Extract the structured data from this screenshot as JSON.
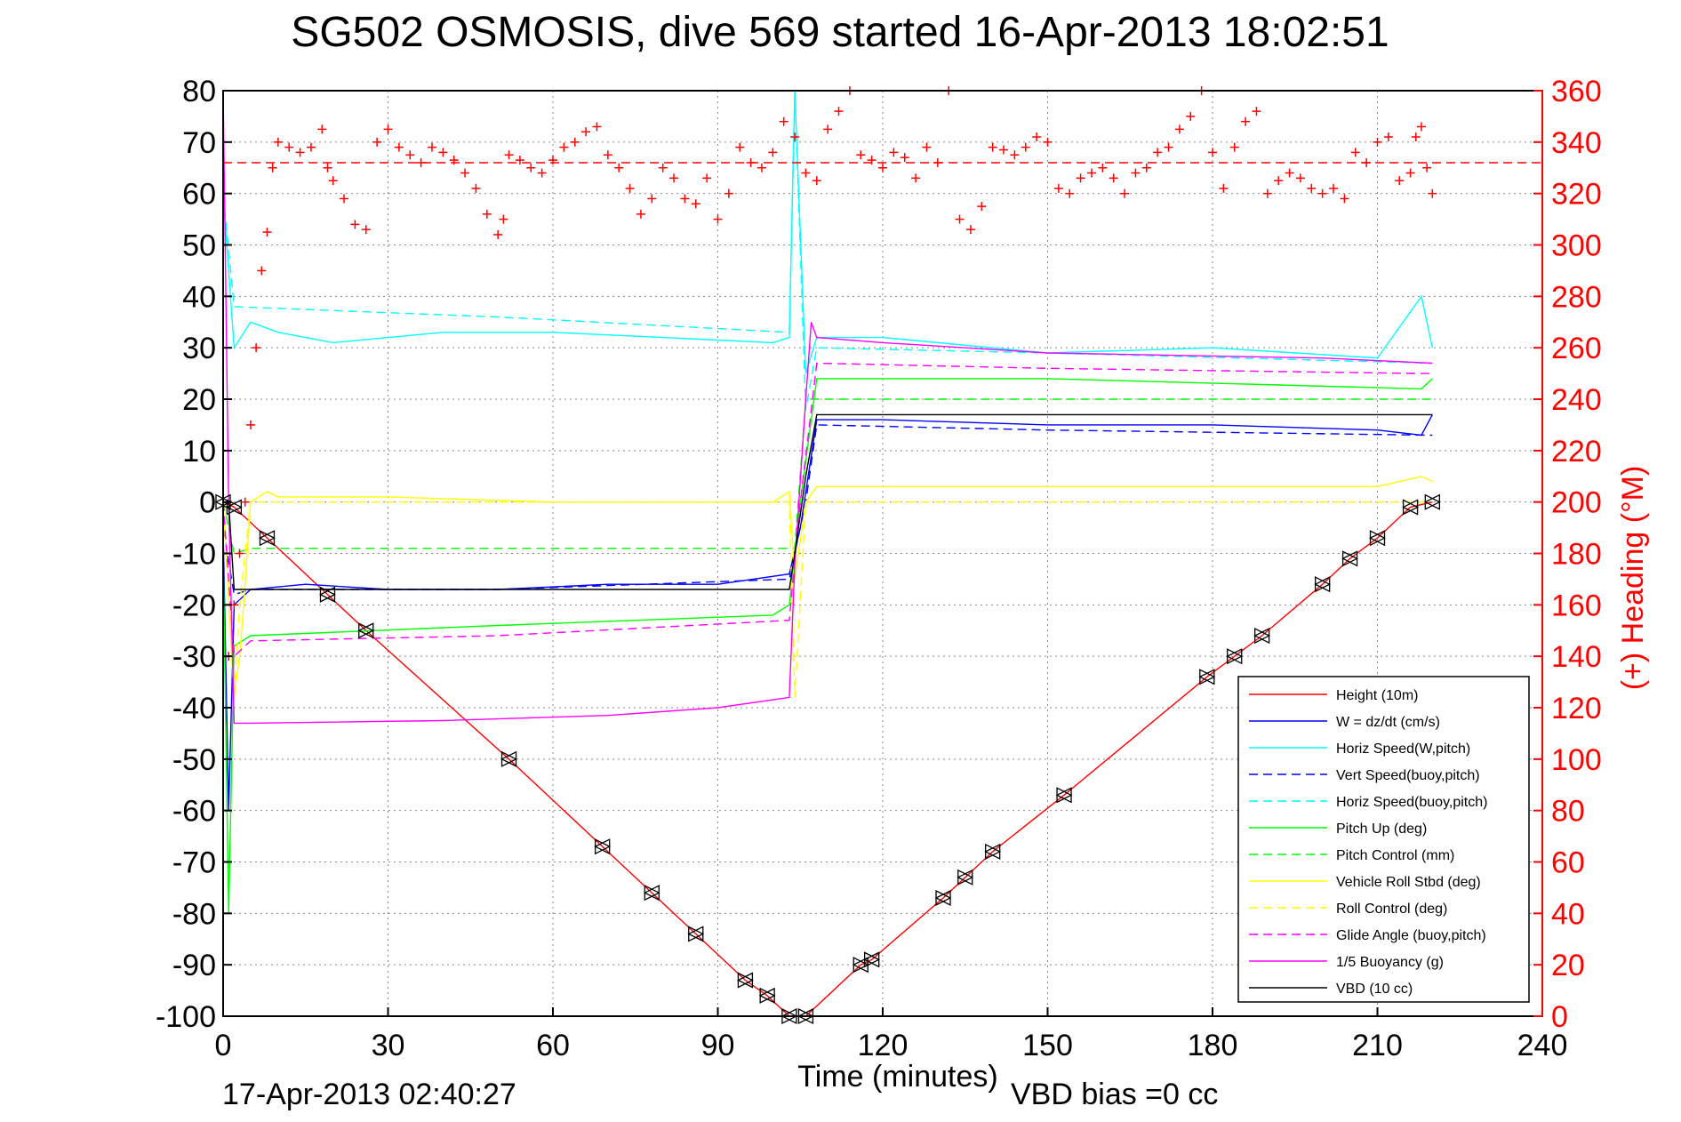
{
  "chart_data": {
    "type": "line",
    "title": "SG502 OSMOSIS, dive 569 started 16-Apr-2013 18:02:51",
    "xlabel": "Time (minutes)",
    "ylabel_right": "(+) Heading (°M)",
    "footer_left": "17-Apr-2013 02:40:27",
    "footer_right": "VBD bias =0 cc",
    "xlim": [
      0,
      240
    ],
    "ylim_left": [
      -100,
      80
    ],
    "ylim_right": [
      0,
      360
    ],
    "x_ticks": [
      "0",
      "30",
      "60",
      "90",
      "120",
      "150",
      "180",
      "210",
      "240"
    ],
    "y_ticks_left": [
      "-100",
      "-90",
      "-80",
      "-70",
      "-60",
      "-50",
      "-40",
      "-30",
      "-20",
      "-10",
      "0",
      "10",
      "20",
      "30",
      "40",
      "50",
      "60",
      "70",
      "80"
    ],
    "y_ticks_right": [
      "0",
      "20",
      "40",
      "60",
      "80",
      "100",
      "120",
      "140",
      "160",
      "180",
      "200",
      "220",
      "240",
      "260",
      "280",
      "300",
      "320",
      "340",
      "360"
    ],
    "grid": true,
    "legend_position": "bottom-right",
    "colors": {
      "red": "#ff0000",
      "blue": "#0000ff",
      "cyan": "#00ffff",
      "green": "#00ff00",
      "yellow": "#ffff00",
      "magenta": "#ff00ff",
      "black": "#000000"
    },
    "series": [
      {
        "name": "Height (10m)",
        "color": "#ff0000",
        "dash": false,
        "axis": "left",
        "x": [
          0,
          2,
          8,
          19,
          26,
          52,
          69,
          78,
          86,
          95,
          99,
          103,
          106,
          116,
          118,
          131,
          135,
          140,
          153,
          179,
          184,
          189,
          200,
          205,
          210,
          216,
          220
        ],
        "y": [
          0,
          -1,
          -7,
          -18,
          -25,
          -50,
          -67,
          -76,
          -84,
          -93,
          -96,
          -100,
          -100,
          -90,
          -89,
          -77,
          -73,
          -68,
          -57,
          -34,
          -30,
          -26,
          -16,
          -11,
          -7,
          -1,
          0
        ]
      },
      {
        "name": "W = dz/dt (cm/s)",
        "color": "#0000ff",
        "dash": false,
        "axis": "left",
        "x": [
          0,
          1,
          2,
          5,
          15,
          30,
          50,
          70,
          90,
          103,
          105,
          108,
          120,
          150,
          180,
          210,
          218,
          220
        ],
        "y": [
          -5,
          -60,
          -20,
          -17,
          -16,
          -17,
          -17,
          -16,
          -16,
          -14,
          -5,
          16,
          16,
          15,
          15,
          14,
          13,
          17
        ]
      },
      {
        "name": "Horiz Speed(W,pitch)",
        "color": "#00ffff",
        "dash": false,
        "axis": "left",
        "x": [
          0,
          2,
          5,
          10,
          20,
          40,
          60,
          80,
          100,
          103,
          104,
          106,
          108,
          120,
          150,
          180,
          210,
          218,
          220
        ],
        "y": [
          60,
          30,
          35,
          33,
          31,
          33,
          33,
          32,
          31,
          32,
          80,
          25,
          32,
          32,
          29,
          30,
          28,
          40,
          30
        ]
      },
      {
        "name": "Vert Speed(buoy,pitch)",
        "color": "#0000ff",
        "dash": true,
        "axis": "left",
        "x": [
          0,
          2,
          5,
          50,
          103,
          106,
          108,
          150,
          220
        ],
        "y": [
          -5,
          -18,
          -17,
          -17,
          -15,
          0,
          15,
          14,
          13
        ]
      },
      {
        "name": "Horiz Speed(buoy,pitch)",
        "color": "#00ffff",
        "dash": true,
        "axis": "left",
        "x": [
          0,
          2,
          50,
          103,
          104,
          106,
          108,
          150,
          220
        ],
        "y": [
          60,
          38,
          36,
          33,
          80,
          18,
          30,
          29,
          27
        ]
      },
      {
        "name": "Pitch Up (deg)",
        "color": "#00ff00",
        "dash": false,
        "axis": "left",
        "x": [
          0,
          1,
          2,
          5,
          50,
          100,
          103,
          105,
          108,
          150,
          218,
          220
        ],
        "y": [
          -10,
          -80,
          -28,
          -26,
          -24,
          -22,
          -20,
          0,
          24,
          24,
          22,
          24
        ]
      },
      {
        "name": "Pitch Control (mm)",
        "color": "#00ff00",
        "dash": true,
        "axis": "left",
        "x": [
          0,
          1,
          2,
          5,
          50,
          103,
          104,
          106,
          108,
          150,
          220
        ],
        "y": [
          0,
          -5,
          -10,
          -9,
          -9,
          -9,
          -9,
          20,
          20,
          20,
          20
        ]
      },
      {
        "name": "Vehicle Roll Stbd (deg)",
        "color": "#ffff00",
        "dash": false,
        "axis": "left",
        "x": [
          0,
          2,
          3,
          4,
          5,
          8,
          10,
          30,
          60,
          90,
          100,
          103,
          104,
          106,
          108,
          150,
          210,
          218,
          220
        ],
        "y": [
          0,
          -38,
          -30,
          -16,
          0,
          2,
          1,
          1,
          0,
          0,
          0,
          2,
          -15,
          0,
          3,
          3,
          3,
          5,
          4
        ]
      },
      {
        "name": "Roll Control (deg)",
        "color": "#ffff00",
        "dash": true,
        "axis": "left",
        "x": [
          0,
          2,
          3,
          5,
          10,
          30,
          60,
          90,
          103,
          104,
          106,
          108,
          150,
          220
        ],
        "y": [
          0,
          -38,
          -20,
          0,
          0,
          0,
          0,
          0,
          0,
          -38,
          0,
          0,
          0,
          0
        ]
      },
      {
        "name": "Glide Angle (buoy,pitch)",
        "color": "#ff00ff",
        "dash": true,
        "axis": "left",
        "x": [
          0,
          2,
          5,
          50,
          103,
          105,
          108,
          150,
          218,
          220
        ],
        "y": [
          0,
          -30,
          -27,
          -26,
          -23,
          0,
          27,
          26,
          25,
          25
        ]
      },
      {
        "name": "1/5 Buoyancy (g)",
        "color": "#ff00ff",
        "dash": false,
        "axis": "left",
        "x": [
          0,
          1,
          2,
          5,
          40,
          70,
          90,
          103,
          104,
          106,
          107,
          108,
          120,
          150,
          200,
          220
        ],
        "y": [
          80,
          0,
          -43,
          -43,
          -42.5,
          -41.5,
          -40,
          -38,
          -12,
          20,
          35,
          32,
          31,
          29,
          28,
          27
        ]
      },
      {
        "name": "VBD (10 cc)",
        "color": "#000000",
        "dash": false,
        "axis": "left",
        "x": [
          0,
          1,
          2,
          103,
          104,
          106,
          108,
          220
        ],
        "y": [
          0,
          0,
          -17,
          -17,
          -10,
          5,
          17,
          17
        ]
      }
    ],
    "heading_points_deg": {
      "color": "#ff0000",
      "marker": "+",
      "target_heading": 332,
      "x": [
        1,
        2,
        3,
        4,
        5,
        6,
        7,
        8,
        9,
        10,
        12,
        14,
        16,
        18,
        19,
        20,
        22,
        24,
        26,
        28,
        30,
        32,
        34,
        36,
        38,
        40,
        42,
        44,
        46,
        48,
        50,
        51,
        52,
        54,
        56,
        58,
        60,
        62,
        64,
        66,
        68,
        70,
        72,
        74,
        76,
        78,
        80,
        82,
        84,
        86,
        88,
        90,
        92,
        94,
        96,
        98,
        100,
        102,
        104,
        106,
        108,
        110,
        112,
        114,
        116,
        118,
        120,
        122,
        124,
        126,
        128,
        130,
        132,
        134,
        136,
        138,
        140,
        142,
        144,
        146,
        148,
        150,
        152,
        154,
        156,
        158,
        160,
        162,
        164,
        166,
        168,
        170,
        172,
        174,
        176,
        178,
        180,
        182,
        184,
        186,
        188,
        190,
        192,
        194,
        196,
        198,
        200,
        202,
        204,
        206,
        208,
        210,
        212,
        214,
        216,
        217,
        218,
        219,
        220
      ],
      "y": [
        140,
        160,
        180,
        200,
        230,
        260,
        290,
        305,
        330,
        340,
        338,
        336,
        338,
        345,
        330,
        325,
        318,
        308,
        306,
        340,
        345,
        338,
        335,
        332,
        338,
        336,
        333,
        328,
        322,
        312,
        304,
        310,
        335,
        333,
        330,
        328,
        333,
        338,
        340,
        344,
        346,
        335,
        330,
        322,
        312,
        318,
        330,
        326,
        318,
        316,
        326,
        310,
        320,
        338,
        332,
        330,
        336,
        348,
        342,
        328,
        325,
        345,
        352,
        360,
        335,
        333,
        330,
        336,
        334,
        326,
        338,
        332,
        360,
        310,
        306,
        315,
        338,
        337,
        335,
        338,
        342,
        340,
        322,
        320,
        326,
        328,
        330,
        326,
        320,
        328,
        330,
        336,
        338,
        345,
        350,
        360,
        336,
        322,
        338,
        348,
        352,
        320,
        325,
        328,
        326,
        322,
        320,
        322,
        318,
        336,
        332,
        340,
        342,
        325,
        328,
        342,
        346,
        330,
        320
      ]
    }
  }
}
